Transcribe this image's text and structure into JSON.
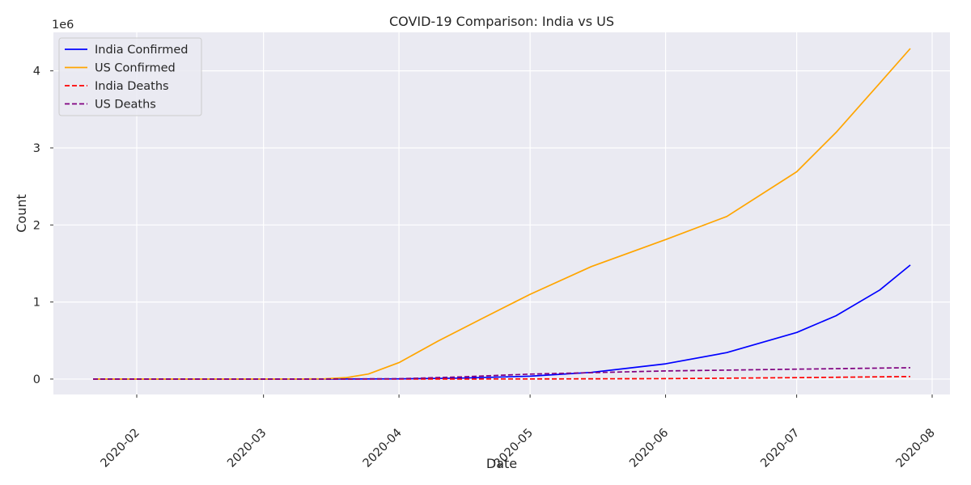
{
  "chart_data": {
    "type": "line",
    "title": "COVID-19 Comparison: India vs US",
    "xlabel": "Date",
    "ylabel": "Count",
    "y_offset_label": "1e6",
    "x_range": [
      "2020-01-22",
      "2020-07-27"
    ],
    "ylim": [
      -200000,
      4500000
    ],
    "x_tick_labels": [
      "2020-02",
      "2020-03",
      "2020-04",
      "2020-05",
      "2020-06",
      "2020-07",
      "2020-08"
    ],
    "x_tick_dates": [
      "2020-02-01",
      "2020-03-01",
      "2020-04-01",
      "2020-05-01",
      "2020-06-01",
      "2020-07-01",
      "2020-08-01"
    ],
    "y_ticks": [
      0,
      1000000,
      2000000,
      3000000,
      4000000
    ],
    "y_tick_labels": [
      "0",
      "1",
      "2",
      "3",
      "4"
    ],
    "grid": true,
    "legend_position": "top-left",
    "series": [
      {
        "name": "India Confirmed",
        "color": "#0000ff",
        "dash": "solid",
        "points": [
          [
            "2020-01-22",
            0
          ],
          [
            "2020-03-15",
            100
          ],
          [
            "2020-04-01",
            1998
          ],
          [
            "2020-04-15",
            12370
          ],
          [
            "2020-05-01",
            37300
          ],
          [
            "2020-05-15",
            85900
          ],
          [
            "2020-06-01",
            198000
          ],
          [
            "2020-06-15",
            343000
          ],
          [
            "2020-07-01",
            605000
          ],
          [
            "2020-07-10",
            822000
          ],
          [
            "2020-07-20",
            1155000
          ],
          [
            "2020-07-27",
            1480000
          ]
        ]
      },
      {
        "name": "US Confirmed",
        "color": "#ffa500",
        "dash": "solid",
        "points": [
          [
            "2020-01-22",
            1
          ],
          [
            "2020-03-10",
            1000
          ],
          [
            "2020-03-15",
            3600
          ],
          [
            "2020-03-20",
            19100
          ],
          [
            "2020-03-25",
            65000
          ],
          [
            "2020-04-01",
            213000
          ],
          [
            "2020-04-10",
            496000
          ],
          [
            "2020-04-20",
            785000
          ],
          [
            "2020-05-01",
            1100000
          ],
          [
            "2020-05-15",
            1460000
          ],
          [
            "2020-06-01",
            1810000
          ],
          [
            "2020-06-15",
            2110000
          ],
          [
            "2020-07-01",
            2690000
          ],
          [
            "2020-07-10",
            3200000
          ],
          [
            "2020-07-20",
            3840000
          ],
          [
            "2020-07-27",
            4290000
          ]
        ]
      },
      {
        "name": "India Deaths",
        "color": "#ff0000",
        "dash": "dashed",
        "points": [
          [
            "2020-01-22",
            0
          ],
          [
            "2020-04-01",
            58
          ],
          [
            "2020-05-01",
            1223
          ],
          [
            "2020-06-01",
            5600
          ],
          [
            "2020-07-01",
            17800
          ],
          [
            "2020-07-27",
            33400
          ]
        ]
      },
      {
        "name": "US Deaths",
        "color": "#800080",
        "dash": "dashed",
        "points": [
          [
            "2020-01-22",
            0
          ],
          [
            "2020-03-15",
            60
          ],
          [
            "2020-04-01",
            5000
          ],
          [
            "2020-04-15",
            28000
          ],
          [
            "2020-05-01",
            64000
          ],
          [
            "2020-06-01",
            105000
          ],
          [
            "2020-07-01",
            128000
          ],
          [
            "2020-07-27",
            147000
          ]
        ]
      }
    ]
  }
}
